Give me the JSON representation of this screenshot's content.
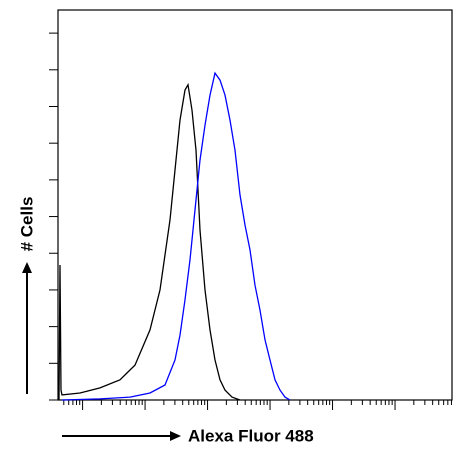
{
  "chart_data": {
    "type": "line",
    "x_label": "Alexa Fluor 488",
    "y_label": "# Cells",
    "series": [
      {
        "color": "#000000",
        "x": [
          2.5,
          5.1,
          7.6,
          10.2,
          55.8,
          106.6,
          157.4,
          195.4,
          233.5,
          258.9,
          284.3,
          297.0,
          309.6,
          322.3,
          329.9,
          340.1,
          350.3,
          360.4,
          373.1,
          385.8,
          398.5,
          411.2,
          423.9,
          441.6,
          461.9
        ],
        "values": [
          0,
          36.8,
          2.7,
          1.4,
          1.9,
          3.3,
          5.5,
          9.5,
          19.1,
          30.0,
          49.1,
          62.7,
          76.3,
          84.5,
          85.9,
          79.0,
          68.1,
          46.3,
          30.0,
          19.1,
          10.9,
          5.5,
          2.7,
          0.8,
          0
        ]
      },
      {
        "color": "#0000ff",
        "x": [
          10.2,
          106.6,
          182.7,
          233.5,
          271.6,
          297.0,
          309.6,
          322.3,
          335.0,
          347.7,
          360.4,
          373.1,
          385.8,
          398.5,
          411.2,
          423.9,
          436.5,
          449.2,
          461.9,
          474.6,
          487.3,
          500.0,
          512.7,
          525.4,
          538.1,
          550.8,
          563.5,
          576.1,
          588.8
        ],
        "values": [
          0,
          0.3,
          0.8,
          1.9,
          4.1,
          10.9,
          17.7,
          27.3,
          38.2,
          51.8,
          65.4,
          74.9,
          83.1,
          89.1,
          87.2,
          83.1,
          76.3,
          68.1,
          55.9,
          47.7,
          40.9,
          31.3,
          24.5,
          16.4,
          10.9,
          5.5,
          2.7,
          0.8,
          0
        ]
      }
    ],
    "xlim": [
      0,
      1000
    ],
    "ylim": [
      0,
      106.3
    ],
    "xticks": [
      62.4,
      221.0,
      379.6,
      538.2,
      696.8,
      855.4
    ],
    "xminorticks": [
      14.7,
      27.2,
      37.8,
      47.0,
      55.1,
      110.1,
      138.1,
      157.9,
      173.3,
      185.8,
      196.4,
      205.6,
      213.7,
      268.7,
      296.7,
      316.5,
      331.9,
      344.4,
      355.0,
      364.2,
      372.3,
      427.3,
      455.3,
      475.1,
      490.5,
      503.0,
      513.6,
      522.8,
      530.9,
      585.9,
      613.9,
      633.7,
      649.1,
      661.6,
      672.2,
      681.4,
      689.5,
      744.5,
      772.5,
      792.3,
      807.7,
      820.2,
      830.8,
      840.0,
      848.1,
      903.1,
      931.1,
      950.9,
      966.3,
      978.8,
      989.4,
      998.6
    ],
    "yticks": [
      0,
      10,
      20,
      30,
      40,
      50,
      60,
      70,
      80,
      90,
      100
    ],
    "grid": false
  }
}
